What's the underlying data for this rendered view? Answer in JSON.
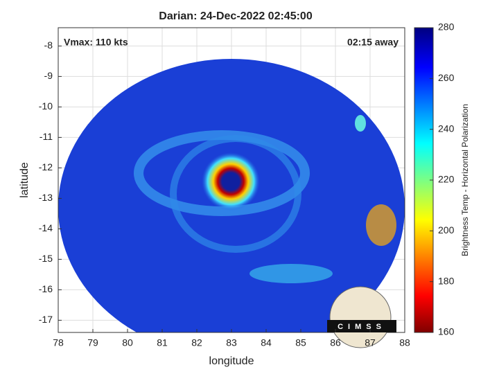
{
  "chart_data": {
    "type": "heatmap",
    "title": "Darian: 24-Dec-2022 02:45:00",
    "annotations": [
      "Vmax: 110 kts",
      "02:15 away"
    ],
    "xlabel": "longitude",
    "ylabel": "latitude",
    "xlim": [
      78,
      88
    ],
    "xticks": [
      78,
      79,
      80,
      81,
      82,
      83,
      84,
      85,
      86,
      87,
      88
    ],
    "ylim": [
      -17.4,
      -7.4
    ],
    "yticks": [
      -8,
      -9,
      -10,
      -11,
      -12,
      -13,
      -14,
      -15,
      -16,
      -17
    ],
    "grid": true,
    "colorbar": {
      "label": "Brightness Temp - Horizontal Polarization",
      "lim": [
        160,
        280
      ],
      "ticks": [
        160,
        180,
        200,
        220,
        240,
        260,
        280
      ]
    },
    "logo_text": "CIMSS"
  }
}
